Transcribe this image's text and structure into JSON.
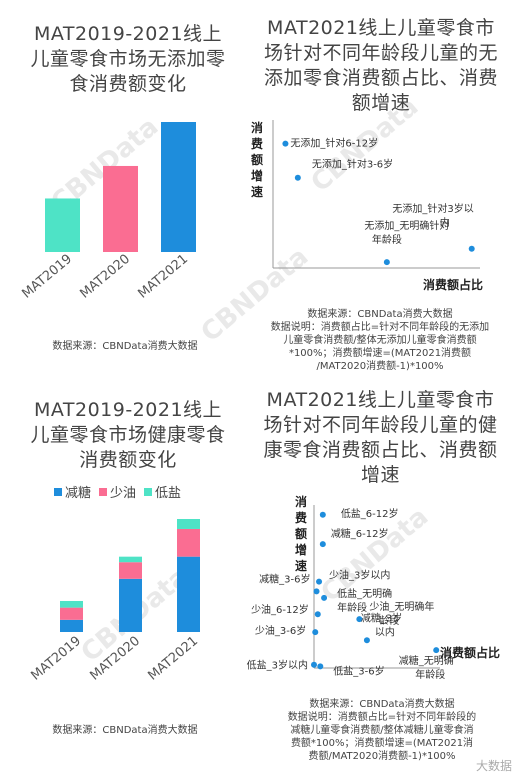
{
  "chart_data": [
    {
      "type": "bar",
      "title": "MAT2019-2021线上儿童零食市场无添加零食消费额变化",
      "categories": [
        "MAT2019",
        "MAT2020",
        "MAT2021"
      ],
      "values": [
        28,
        45,
        68
      ],
      "colors": [
        "#4ee3c6",
        "#fa6d92",
        "#1e8ddc"
      ],
      "source": "数据来源：CBNData消费大数据"
    },
    {
      "type": "scatter",
      "title": "MAT2021线上儿童零食市场针对不同年龄段儿童的无添加零食消费额占比、消费额增速",
      "xlabel": "消费额占比",
      "ylabel": "消费额增速",
      "points": [
        {
          "label": "无添加_针对6-12岁",
          "x": 0.06,
          "y": 0.84
        },
        {
          "label": "无添加_针对3-6岁",
          "x": 0.12,
          "y": 0.61
        },
        {
          "label": "无添加_针对3岁以内",
          "x": 0.96,
          "y": 0.13,
          "label2": "内",
          "label1": "无添加_针对3岁以"
        },
        {
          "label": "无添加_无明确针对年龄段",
          "x": 0.55,
          "y": 0.04,
          "label1": "无添加_无明确针对",
          "label2": "年龄段"
        }
      ],
      "source_lines": [
        "数据来源：CBNData消费大数据",
        "数据说明：消费额占比=针对不同年龄段的无添加",
        "儿童零食消费额/整体无添加儿童零食消费额",
        "*100%；消费额增速=(MAT2021消费额",
        "/MAT2020消费额-1)*100%"
      ]
    },
    {
      "type": "bar",
      "stacked": true,
      "title": "MAT2019-2021线上儿童零食市场健康零食消费额变化",
      "categories": [
        "MAT2019",
        "MAT2020",
        "MAT2021"
      ],
      "series": [
        {
          "name": "减糖",
          "color": "#1e8ddc",
          "values": [
            11,
            48,
            68
          ]
        },
        {
          "name": "少油",
          "color": "#fa6d92",
          "values": [
            11,
            15,
            25
          ]
        },
        {
          "name": "低盐",
          "color": "#4ee3c6",
          "values": [
            6,
            5,
            9
          ]
        }
      ],
      "source": "数据来源：CBNData消费大数据"
    },
    {
      "type": "scatter",
      "title": "MAT2021线上儿童零食市场针对不同年龄段儿童的健康零食消费额占比、消费额增速",
      "xlabel": "消费额占比",
      "ylabel": "消费额增速",
      "points": [
        {
          "label": "低盐_6-12岁",
          "x": 0.07,
          "y": 0.94
        },
        {
          "label": "减糖_6-12岁",
          "x": 0.07,
          "y": 0.76
        },
        {
          "label": "少油_3岁以内",
          "x": 0.04,
          "y": 0.53
        },
        {
          "label": "减糖_3-6岁",
          "x": 0.02,
          "y": 0.47
        },
        {
          "label": "少油_6-12岁",
          "x": 0.03,
          "y": 0.33
        },
        {
          "label": "低盐_无明确年龄段",
          "x": 0.08,
          "y": 0.43,
          "label1": "低盐_无明确",
          "label2": "年龄段"
        },
        {
          "label": "少油_3-6岁",
          "x": 0.01,
          "y": 0.22
        },
        {
          "label": "少油_无明确年龄段",
          "x": 0.36,
          "y": 0.3,
          "label1": "少油_无明确年",
          "label2": "龄段"
        },
        {
          "label": "减糖_3岁以内",
          "x": 0.42,
          "y": 0.17,
          "label1": "减糖_3岁",
          "label2": "以内"
        },
        {
          "label": "减糖_无明确年龄段",
          "x": 0.97,
          "y": 0.11,
          "label1": "减糖_无明确",
          "label2": "年龄段"
        },
        {
          "label": "低盐_3岁以内",
          "x": 0.0,
          "y": 0.02
        },
        {
          "label": "低盐_3-6岁",
          "x": 0.05,
          "y": 0.01
        }
      ],
      "source_lines": [
        "数据来源：CBNData消费大数据",
        "数据说明：消费额占比=针对不同年龄段的",
        "减糖儿童零食消费额/整体减糖儿童零食消",
        "费额*100%；消费额增速=(MAT2021消",
        "费额/MAT2020消费额-1)*100%"
      ]
    }
  ],
  "watermark": "CBNData",
  "corner_mark": "大数据"
}
